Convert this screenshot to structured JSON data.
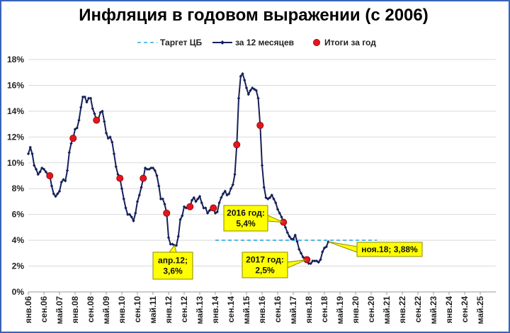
{
  "chart_data": {
    "type": "line",
    "title": "Инфляция в годовом выражении (с 2006)",
    "xlabel": "",
    "ylabel": "",
    "ylim": [
      0,
      18
    ],
    "y_ticks": [
      "0%",
      "2%",
      "4%",
      "6%",
      "8%",
      "10%",
      "12%",
      "14%",
      "16%",
      "18%"
    ],
    "x_range": [
      "2006-01",
      "2025-12"
    ],
    "x_ticks": [
      {
        "label": "янв.06",
        "date": "2006-01"
      },
      {
        "label": "сен.06",
        "date": "2006-09"
      },
      {
        "label": "май.07",
        "date": "2007-05"
      },
      {
        "label": "янв.08",
        "date": "2008-01"
      },
      {
        "label": "сен.08",
        "date": "2008-09"
      },
      {
        "label": "май.09",
        "date": "2009-05"
      },
      {
        "label": "янв.10",
        "date": "2010-01"
      },
      {
        "label": "сен.10",
        "date": "2010-09"
      },
      {
        "label": "май.11",
        "date": "2011-05"
      },
      {
        "label": "янв.12",
        "date": "2012-01"
      },
      {
        "label": "сен.12",
        "date": "2012-09"
      },
      {
        "label": "май.13",
        "date": "2013-05"
      },
      {
        "label": "янв.14",
        "date": "2014-01"
      },
      {
        "label": "сен.14",
        "date": "2014-09"
      },
      {
        "label": "май.15",
        "date": "2015-05"
      },
      {
        "label": "янв.16",
        "date": "2016-01"
      },
      {
        "label": "сен.16",
        "date": "2016-09"
      },
      {
        "label": "май.17",
        "date": "2017-05"
      },
      {
        "label": "янв.18",
        "date": "2018-01"
      },
      {
        "label": "сен.18",
        "date": "2018-09"
      },
      {
        "label": "май.19",
        "date": "2019-05"
      },
      {
        "label": "янв.20",
        "date": "2020-01"
      },
      {
        "label": "сен.20",
        "date": "2020-09"
      },
      {
        "label": "май.21",
        "date": "2021-05"
      },
      {
        "label": "янв.22",
        "date": "2022-01"
      },
      {
        "label": "сен.22",
        "date": "2022-09"
      },
      {
        "label": "май.23",
        "date": "2023-05"
      },
      {
        "label": "янв.24",
        "date": "2024-01"
      },
      {
        "label": "сен.24",
        "date": "2024-09"
      },
      {
        "label": "май.25",
        "date": "2025-05"
      }
    ],
    "grid": true,
    "legend_position": "top-right",
    "series": [
      {
        "name": "Таргет ЦБ",
        "style": "dashed",
        "color": "#2ea8e0",
        "points": [
          [
            "2014-01",
            4.0
          ],
          [
            "2020-12",
            4.0
          ]
        ]
      },
      {
        "name": "за 12 месяцев",
        "style": "line-diamond",
        "color": "#16205a",
        "points": [
          [
            "2006-01",
            10.7
          ],
          [
            "2006-02",
            11.2
          ],
          [
            "2006-03",
            10.7
          ],
          [
            "2006-04",
            9.8
          ],
          [
            "2006-05",
            9.5
          ],
          [
            "2006-06",
            9.1
          ],
          [
            "2006-07",
            9.3
          ],
          [
            "2006-08",
            9.6
          ],
          [
            "2006-09",
            9.5
          ],
          [
            "2006-10",
            9.3
          ],
          [
            "2006-11",
            9.1
          ],
          [
            "2006-12",
            9.0
          ],
          [
            "2007-01",
            8.2
          ],
          [
            "2007-02",
            7.6
          ],
          [
            "2007-03",
            7.4
          ],
          [
            "2007-04",
            7.6
          ],
          [
            "2007-05",
            7.8
          ],
          [
            "2007-06",
            8.5
          ],
          [
            "2007-07",
            8.7
          ],
          [
            "2007-08",
            8.6
          ],
          [
            "2007-09",
            9.4
          ],
          [
            "2007-10",
            10.8
          ],
          [
            "2007-11",
            11.5
          ],
          [
            "2007-12",
            11.9
          ],
          [
            "2008-01",
            12.6
          ],
          [
            "2008-02",
            12.7
          ],
          [
            "2008-03",
            13.3
          ],
          [
            "2008-04",
            14.3
          ],
          [
            "2008-05",
            15.1
          ],
          [
            "2008-06",
            15.1
          ],
          [
            "2008-07",
            14.7
          ],
          [
            "2008-08",
            15.0
          ],
          [
            "2008-09",
            15.0
          ],
          [
            "2008-10",
            14.2
          ],
          [
            "2008-11",
            13.8
          ],
          [
            "2008-12",
            13.3
          ],
          [
            "2009-01",
            13.4
          ],
          [
            "2009-02",
            13.9
          ],
          [
            "2009-03",
            14.0
          ],
          [
            "2009-04",
            13.2
          ],
          [
            "2009-05",
            12.3
          ],
          [
            "2009-06",
            11.9
          ],
          [
            "2009-07",
            12.0
          ],
          [
            "2009-08",
            11.6
          ],
          [
            "2009-09",
            10.7
          ],
          [
            "2009-10",
            9.7
          ],
          [
            "2009-11",
            9.1
          ],
          [
            "2009-12",
            8.8
          ],
          [
            "2010-01",
            8.0
          ],
          [
            "2010-02",
            7.2
          ],
          [
            "2010-03",
            6.5
          ],
          [
            "2010-04",
            6.0
          ],
          [
            "2010-05",
            6.0
          ],
          [
            "2010-06",
            5.8
          ],
          [
            "2010-07",
            5.5
          ],
          [
            "2010-08",
            6.1
          ],
          [
            "2010-09",
            7.0
          ],
          [
            "2010-10",
            7.5
          ],
          [
            "2010-11",
            8.1
          ],
          [
            "2010-12",
            8.8
          ],
          [
            "2011-01",
            9.6
          ],
          [
            "2011-02",
            9.5
          ],
          [
            "2011-03",
            9.5
          ],
          [
            "2011-04",
            9.6
          ],
          [
            "2011-05",
            9.6
          ],
          [
            "2011-06",
            9.4
          ],
          [
            "2011-07",
            9.0
          ],
          [
            "2011-08",
            8.2
          ],
          [
            "2011-09",
            7.2
          ],
          [
            "2011-10",
            7.2
          ],
          [
            "2011-11",
            6.8
          ],
          [
            "2011-12",
            6.1
          ],
          [
            "2012-01",
            4.2
          ],
          [
            "2012-02",
            3.7
          ],
          [
            "2012-03",
            3.7
          ],
          [
            "2012-04",
            3.6
          ],
          [
            "2012-05",
            3.6
          ],
          [
            "2012-06",
            4.3
          ],
          [
            "2012-07",
            5.6
          ],
          [
            "2012-08",
            5.9
          ],
          [
            "2012-09",
            6.6
          ],
          [
            "2012-10",
            6.5
          ],
          [
            "2012-11",
            6.5
          ],
          [
            "2012-12",
            6.6
          ],
          [
            "2013-01",
            7.1
          ],
          [
            "2013-02",
            7.3
          ],
          [
            "2013-03",
            7.0
          ],
          [
            "2013-04",
            7.2
          ],
          [
            "2013-05",
            7.4
          ],
          [
            "2013-06",
            6.9
          ],
          [
            "2013-07",
            6.5
          ],
          [
            "2013-08",
            6.5
          ],
          [
            "2013-09",
            6.1
          ],
          [
            "2013-10",
            6.3
          ],
          [
            "2013-11",
            6.5
          ],
          [
            "2013-12",
            6.5
          ],
          [
            "2014-01",
            6.1
          ],
          [
            "2014-02",
            6.2
          ],
          [
            "2014-03",
            6.9
          ],
          [
            "2014-04",
            7.3
          ],
          [
            "2014-05",
            7.6
          ],
          [
            "2014-06",
            7.8
          ],
          [
            "2014-07",
            7.5
          ],
          [
            "2014-08",
            7.6
          ],
          [
            "2014-09",
            8.0
          ],
          [
            "2014-10",
            8.3
          ],
          [
            "2014-11",
            9.1
          ],
          [
            "2014-12",
            11.4
          ],
          [
            "2015-01",
            15.0
          ],
          [
            "2015-02",
            16.7
          ],
          [
            "2015-03",
            16.9
          ],
          [
            "2015-04",
            16.4
          ],
          [
            "2015-05",
            15.8
          ],
          [
            "2015-06",
            15.3
          ],
          [
            "2015-07",
            15.6
          ],
          [
            "2015-08",
            15.8
          ],
          [
            "2015-09",
            15.7
          ],
          [
            "2015-10",
            15.6
          ],
          [
            "2015-11",
            15.0
          ],
          [
            "2015-12",
            12.9
          ],
          [
            "2016-01",
            9.8
          ],
          [
            "2016-02",
            8.1
          ],
          [
            "2016-03",
            7.3
          ],
          [
            "2016-04",
            7.2
          ],
          [
            "2016-05",
            7.3
          ],
          [
            "2016-06",
            7.5
          ],
          [
            "2016-07",
            7.2
          ],
          [
            "2016-08",
            6.9
          ],
          [
            "2016-09",
            6.4
          ],
          [
            "2016-10",
            6.1
          ],
          [
            "2016-11",
            5.8
          ],
          [
            "2016-12",
            5.4
          ],
          [
            "2017-01",
            5.0
          ],
          [
            "2017-02",
            4.6
          ],
          [
            "2017-03",
            4.3
          ],
          [
            "2017-04",
            4.1
          ],
          [
            "2017-05",
            4.1
          ],
          [
            "2017-06",
            4.4
          ],
          [
            "2017-07",
            3.9
          ],
          [
            "2017-08",
            3.3
          ],
          [
            "2017-09",
            3.0
          ],
          [
            "2017-10",
            2.7
          ],
          [
            "2017-11",
            2.5
          ],
          [
            "2017-12",
            2.5
          ],
          [
            "2018-01",
            2.2
          ],
          [
            "2018-02",
            2.2
          ],
          [
            "2018-03",
            2.4
          ],
          [
            "2018-04",
            2.4
          ],
          [
            "2018-05",
            2.4
          ],
          [
            "2018-06",
            2.3
          ],
          [
            "2018-07",
            2.5
          ],
          [
            "2018-08",
            3.1
          ],
          [
            "2018-09",
            3.4
          ],
          [
            "2018-10",
            3.5
          ],
          [
            "2018-11",
            3.88
          ]
        ]
      },
      {
        "name": "Итоги за год",
        "style": "marker-circle",
        "color": "#e8141b",
        "points": [
          [
            "2006-12",
            9.0
          ],
          [
            "2007-12",
            11.9
          ],
          [
            "2008-12",
            13.3
          ],
          [
            "2009-12",
            8.8
          ],
          [
            "2010-12",
            8.8
          ],
          [
            "2011-12",
            6.1
          ],
          [
            "2012-12",
            6.6
          ],
          [
            "2013-12",
            6.5
          ],
          [
            "2014-12",
            11.4
          ],
          [
            "2015-12",
            12.9
          ],
          [
            "2016-12",
            5.4
          ],
          [
            "2017-12",
            2.5
          ]
        ]
      }
    ],
    "annotations": [
      {
        "lines": [
          "апр.12;",
          "3,6%"
        ],
        "point": [
          "2012-04",
          3.6
        ],
        "placement": "below-right"
      },
      {
        "lines": [
          "2016 год:",
          "5,4%"
        ],
        "point": [
          "2016-12",
          5.4
        ],
        "placement": "left"
      },
      {
        "lines": [
          "2017 год:",
          "2,5%"
        ],
        "point": [
          "2017-12",
          2.5
        ],
        "placement": "left"
      },
      {
        "lines": [
          "ноя.18; 3,88%"
        ],
        "point": [
          "2018-11",
          3.88
        ],
        "placement": "right"
      }
    ],
    "colors": {
      "callout_fill": "#ffff00",
      "callout_border": "#8a8a00",
      "grid": "#d9d9d9",
      "frame": "#3a63b4"
    }
  }
}
